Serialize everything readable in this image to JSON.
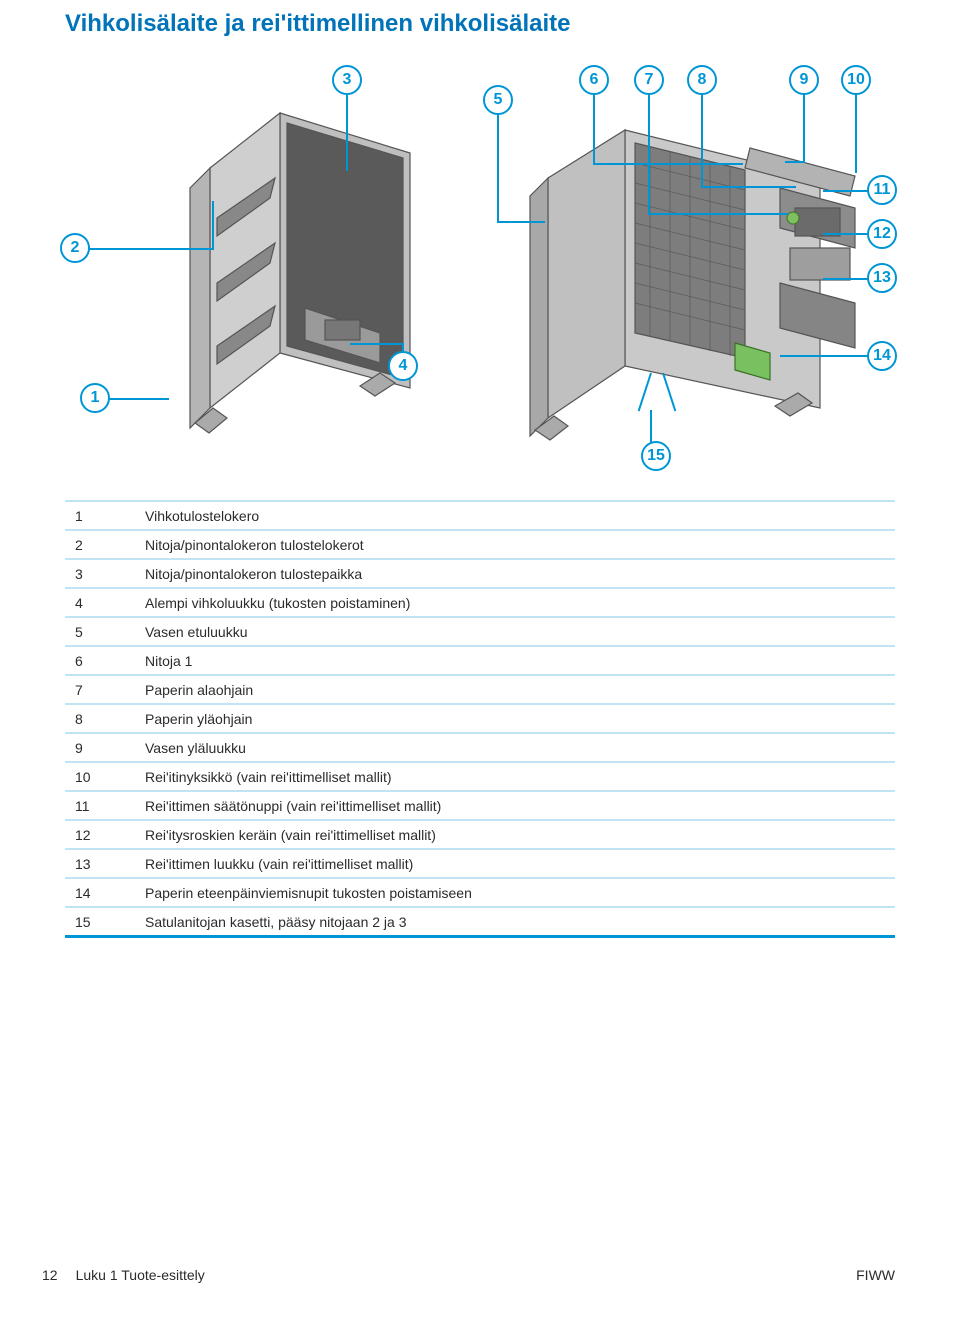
{
  "heading": "Vihkolisälaite ja rei'ittimellinen vihkolisälaite",
  "callouts": [
    "1",
    "2",
    "3",
    "4",
    "5",
    "6",
    "7",
    "8",
    "9",
    "10",
    "11",
    "12",
    "13",
    "14",
    "15"
  ],
  "parts": [
    {
      "num": "1",
      "desc": "Vihkotulostelokero"
    },
    {
      "num": "2",
      "desc": "Nitoja/pinontalokeron tulostelokerot"
    },
    {
      "num": "3",
      "desc": "Nitoja/pinontalokeron tulostepaikka"
    },
    {
      "num": "4",
      "desc": "Alempi vihkoluukku (tukosten poistaminen)"
    },
    {
      "num": "5",
      "desc": "Vasen etuluukku"
    },
    {
      "num": "6",
      "desc": "Nitoja 1"
    },
    {
      "num": "7",
      "desc": "Paperin alaohjain"
    },
    {
      "num": "8",
      "desc": "Paperin yläohjain"
    },
    {
      "num": "9",
      "desc": "Vasen yläluukku"
    },
    {
      "num": "10",
      "desc": "Rei'itinyksikkö (vain rei'ittimelliset mallit)"
    },
    {
      "num": "11",
      "desc": "Rei'ittimen säätönuppi (vain rei'ittimelliset mallit)"
    },
    {
      "num": "12",
      "desc": "Rei'itysroskien keräin (vain rei'ittimelliset mallit)"
    },
    {
      "num": "13",
      "desc": "Rei'ittimen luukku (vain rei'ittimelliset mallit)"
    },
    {
      "num": "14",
      "desc": "Paperin eteenpäinviemisnupit tukosten poistamiseen"
    },
    {
      "num": "15",
      "desc": "Satulanitojan kasetti, pääsy nitojaan 2 ja 3"
    }
  ],
  "footer": {
    "page_num": "12",
    "chapter": "Luku 1   Tuote-esittely",
    "lang": "FIWW"
  },
  "colors": {
    "accent": "#0096d6",
    "heading": "#0073b9",
    "row_border": "#c1e4f5"
  }
}
